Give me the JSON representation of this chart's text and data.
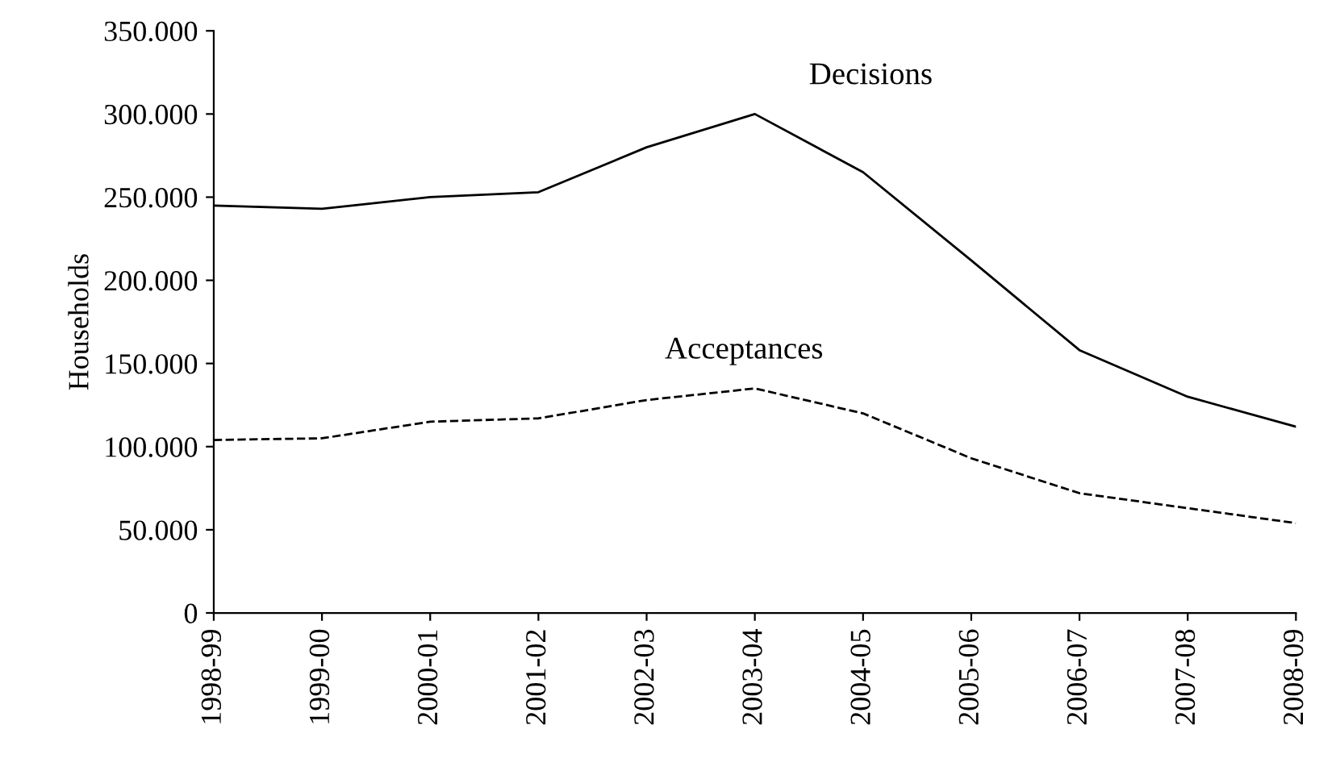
{
  "chart_data": {
    "type": "line",
    "ylabel": "Households",
    "categories": [
      "1998-99",
      "1999-00",
      "2000-01",
      "2001-02",
      "2002-03",
      "2003-04",
      "2004-05",
      "2005-06",
      "2006-07",
      "2007-08",
      "2008-09"
    ],
    "series": [
      {
        "name": "Decisions",
        "color": "#000000",
        "line_style": "solid",
        "values": [
          245000,
          243000,
          250000,
          253000,
          280000,
          300000,
          265000,
          212000,
          158000,
          130000,
          112000
        ]
      },
      {
        "name": "Acceptances",
        "color": "#000000",
        "line_style": "dashed",
        "values": [
          104000,
          105000,
          115000,
          117000,
          128000,
          135000,
          120000,
          93000,
          72000,
          63000,
          54000
        ]
      }
    ],
    "ylim": [
      0,
      350000
    ],
    "yticks": [
      0,
      {
        "value": 50000,
        "label": "50.000"
      },
      {
        "value": 100000,
        "label": "100.000"
      },
      {
        "value": 150000,
        "label": "150.000"
      },
      {
        "value": 200000,
        "label": "200.000"
      },
      {
        "value": 250000,
        "label": "250.000"
      },
      {
        "value": 300000,
        "label": "300.000"
      },
      {
        "value": 350000,
        "label": "350.000"
      }
    ],
    "grid": false,
    "legend": false,
    "marker": "none"
  }
}
